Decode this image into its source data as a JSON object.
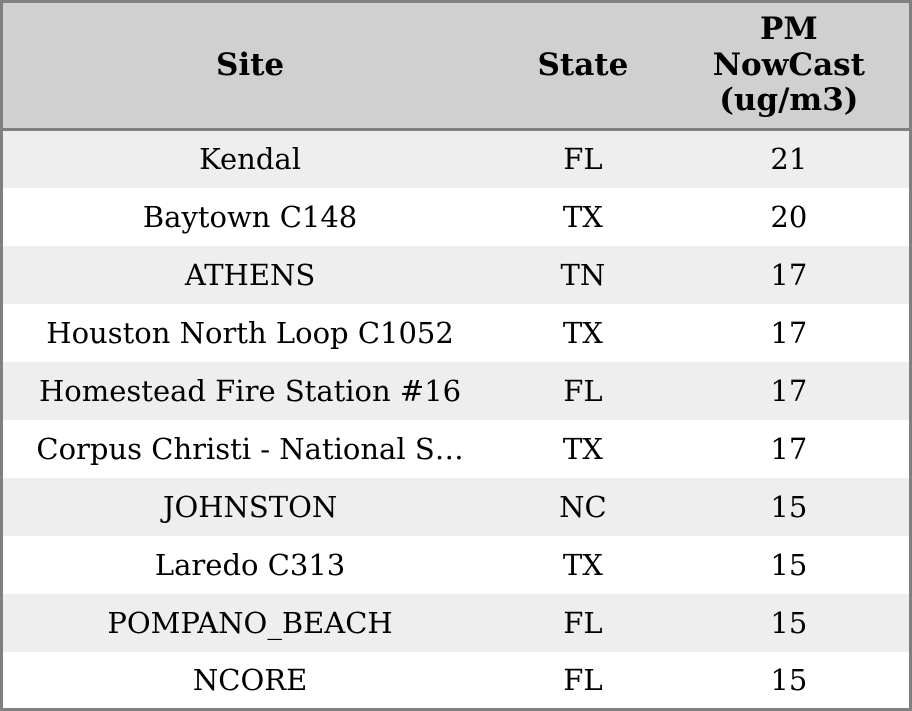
{
  "chart_data": {
    "type": "table",
    "columns": [
      {
        "id": "site",
        "label": "Site"
      },
      {
        "id": "state",
        "label": "State"
      },
      {
        "id": "pm_nowcast",
        "label": "PM NowCast (ug/m3)",
        "display_label": "PM\nNowCast\n(ug/m3)"
      }
    ],
    "rows": [
      {
        "site": "Kendal",
        "state": "FL",
        "pm_nowcast": 21
      },
      {
        "site": "Baytown C148",
        "state": "TX",
        "pm_nowcast": 20
      },
      {
        "site": "ATHENS",
        "state": "TN",
        "pm_nowcast": 17
      },
      {
        "site": "Houston North Loop C1052",
        "state": "TX",
        "pm_nowcast": 17
      },
      {
        "site": "Homestead Fire Station #16",
        "state": "FL",
        "pm_nowcast": 17
      },
      {
        "site": "Corpus Christi - National S…",
        "state": "TX",
        "pm_nowcast": 17
      },
      {
        "site": "JOHNSTON",
        "state": "NC",
        "pm_nowcast": 15
      },
      {
        "site": "Laredo C313",
        "state": "TX",
        "pm_nowcast": 15
      },
      {
        "site": "POMPANO_BEACH",
        "state": "FL",
        "pm_nowcast": 15
      },
      {
        "site": "NCORE",
        "state": "FL",
        "pm_nowcast": 15
      }
    ]
  },
  "colors": {
    "border": "#808080",
    "header_bg": "#d0d0d0",
    "row_alt_bg": "#eeeeee",
    "row_bg": "#ffffff",
    "text": "#000000"
  }
}
